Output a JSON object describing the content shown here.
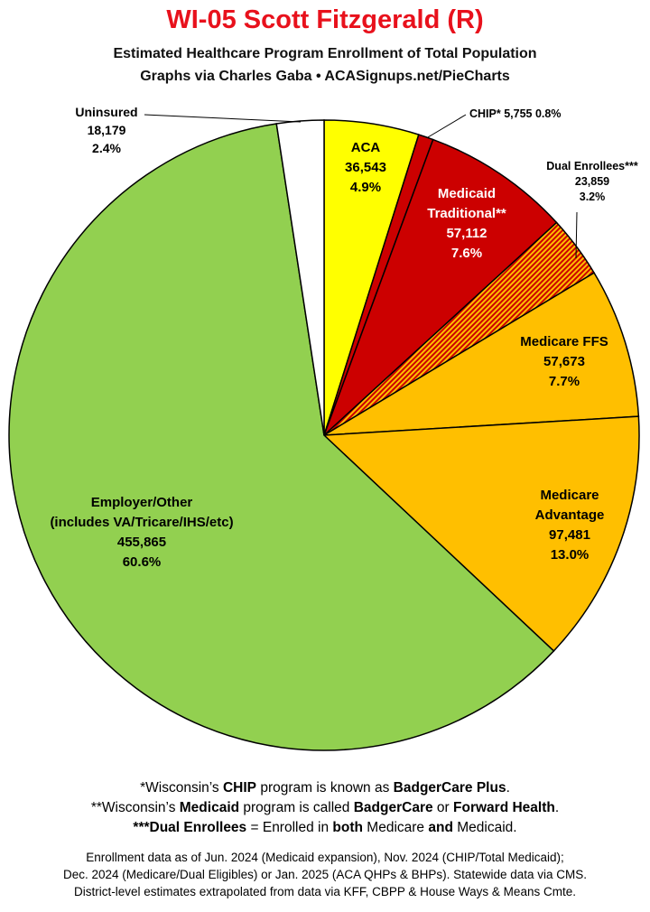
{
  "header": {
    "title": "WI-05 Scott Fitzgerald (R)",
    "subtitle_line1": "Estimated Healthcare Program Enrollment of Total Population",
    "subtitle_line2": "Graphs via Charles Gaba  •  ACASignups.net/PieCharts"
  },
  "chart_data": {
    "type": "pie",
    "title": "WI-05 Scott Fitzgerald (R)",
    "start_angle_deg": 0,
    "direction": "clockwise",
    "slices": [
      {
        "name": "ACA",
        "value": 36543,
        "value_label": "36,543",
        "percent_label": "4.9%",
        "color": "#ffff00",
        "pattern": "solid"
      },
      {
        "name": "CHIP*",
        "value": 5755,
        "value_label": "5,755",
        "percent_label": "0.8%",
        "color": "#cc0000",
        "pattern": "solid"
      },
      {
        "name": "Medicaid Traditional**",
        "value": 57112,
        "value_label": "57,112",
        "percent_label": "7.6%",
        "color": "#cc0000",
        "pattern": "solid"
      },
      {
        "name": "Dual Enrollees***",
        "value": 23859,
        "value_label": "23,859",
        "percent_label": "3.2%",
        "color": "#ffbf00",
        "pattern": "stripes",
        "stripe_color": "#cc0000"
      },
      {
        "name": "Medicare FFS",
        "value": 57673,
        "value_label": "57,673",
        "percent_label": "7.7%",
        "color": "#ffbf00",
        "pattern": "solid"
      },
      {
        "name": "Medicare Advantage",
        "value": 97481,
        "value_label": "97,481",
        "percent_label": "13.0%",
        "color": "#ffbf00",
        "pattern": "solid"
      },
      {
        "name": "Employer/Other (includes VA/Tricare/IHS/etc)",
        "value": 455865,
        "value_label": "455,865",
        "percent_label": "60.6%",
        "color": "#92d050",
        "pattern": "solid"
      },
      {
        "name": "Uninsured",
        "value": 18179,
        "value_label": "18,179",
        "percent_label": "2.4%",
        "color": "#ffffff",
        "pattern": "solid"
      }
    ],
    "labels": {
      "aca": [
        "ACA",
        "36,543",
        "4.9%"
      ],
      "chip": [
        "CHIP* 5,755 0.8%"
      ],
      "medicaid": [
        "Medicaid",
        "Traditional**",
        "57,112",
        "7.6%"
      ],
      "dual": [
        "Dual Enrollees***",
        "23,859",
        "3.2%"
      ],
      "ffs": [
        "Medicare FFS",
        "57,673",
        "7.7%"
      ],
      "ma": [
        "Medicare",
        "Advantage",
        "97,481",
        "13.0%"
      ],
      "employer": [
        "Employer/Other",
        "(includes VA/Tricare/IHS/etc)",
        "455,865",
        "60.6%"
      ],
      "uninsured": [
        "Uninsured",
        "18,179",
        "2.4%"
      ]
    }
  },
  "footnotes": [
    [
      {
        "t": "*Wisconsin’s "
      },
      {
        "t": "CHIP",
        "b": true
      },
      {
        "t": " program is known as "
      },
      {
        "t": "BadgerCare Plus",
        "b": true
      },
      {
        "t": "."
      }
    ],
    [
      {
        "t": "**Wisconsin’s "
      },
      {
        "t": "Medicaid",
        "b": true
      },
      {
        "t": " program is called "
      },
      {
        "t": "BadgerCare",
        "b": true
      },
      {
        "t": " or "
      },
      {
        "t": "Forward Health",
        "b": true
      },
      {
        "t": "."
      }
    ],
    [
      {
        "t": "***Dual Enrollees",
        "b": true
      },
      {
        "t": " = Enrolled in "
      },
      {
        "t": "both",
        "b": true
      },
      {
        "t": " Medicare "
      },
      {
        "t": "and",
        "b": true
      },
      {
        "t": " Medicaid."
      }
    ]
  ],
  "source_lines": [
    "Enrollment data as of Jun. 2024 (Medicaid expansion), Nov. 2024 (CHIP/Total Medicaid);",
    "Dec. 2024 (Medicare/Dual Eligibles) or Jan. 2025 (ACA QHPs & BHPs). Statewide data via CMS.",
    "District-level estimates extrapolated from data via KFF, CBPP & House Ways & Means Cmte."
  ]
}
